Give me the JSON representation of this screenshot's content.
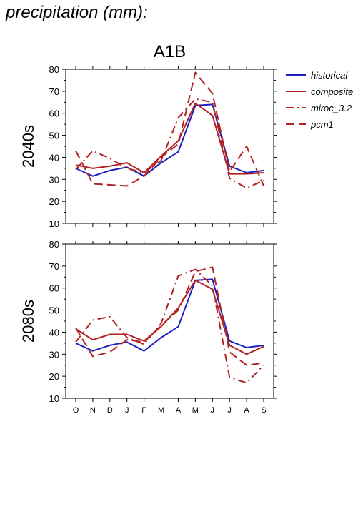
{
  "page_title": "precipitation (mm):",
  "chart_data": [
    {
      "type": "line",
      "title": "A1B",
      "ylabel": "2040s",
      "categories": [
        "O",
        "N",
        "D",
        "J",
        "F",
        "M",
        "A",
        "M",
        "J",
        "J",
        "A",
        "S"
      ],
      "ylim": [
        10,
        80
      ],
      "yticks": [
        "10",
        "20",
        "30",
        "40",
        "50",
        "60",
        "70",
        "80"
      ],
      "legend_position": "right",
      "series": [
        {
          "name": "historical",
          "color": "#1f1fbf",
          "dash": "solid",
          "values": [
            35,
            31.5,
            34,
            35.5,
            31.5,
            37.5,
            42.5,
            63.5,
            64,
            36,
            33,
            34
          ]
        },
        {
          "name": "composite",
          "color": "#b22222",
          "dash": "solid",
          "values": [
            36.5,
            35,
            36,
            37.5,
            33,
            40.5,
            47.5,
            64.5,
            59,
            32.5,
            32.5,
            33
          ]
        },
        {
          "name": "miroc_3.2",
          "color": "#b22222",
          "dash": "dashdot",
          "values": [
            34.5,
            43,
            39.5,
            35,
            33,
            38.5,
            58,
            66.5,
            65,
            30.5,
            26,
            29.5
          ]
        },
        {
          "name": "pcm1",
          "color": "#b22222",
          "dash": "longdash",
          "values": [
            43,
            28,
            27.5,
            27,
            31.5,
            40,
            46,
            78.5,
            69,
            33.5,
            45,
            27
          ]
        }
      ]
    },
    {
      "type": "line",
      "title": "",
      "ylabel": "2080s",
      "categories": [
        "O",
        "N",
        "D",
        "J",
        "F",
        "M",
        "A",
        "M",
        "J",
        "J",
        "A",
        "S"
      ],
      "ylim": [
        10,
        80
      ],
      "yticks": [
        "10",
        "20",
        "30",
        "40",
        "50",
        "60",
        "70",
        "80"
      ],
      "series": [
        {
          "name": "historical",
          "color": "#1f1fbf",
          "dash": "solid",
          "values": [
            35,
            31.5,
            34,
            35.5,
            31.5,
            37.5,
            42.5,
            63.5,
            64,
            36,
            33,
            34
          ]
        },
        {
          "name": "composite",
          "color": "#b22222",
          "dash": "solid",
          "values": [
            41.5,
            36.5,
            39,
            39,
            36,
            42.5,
            51,
            63.5,
            59.5,
            34,
            30,
            33.5
          ]
        },
        {
          "name": "miroc_3.2",
          "color": "#b22222",
          "dash": "dashdot",
          "values": [
            35.5,
            45.5,
            47,
            37.5,
            34.5,
            44,
            65.5,
            68.5,
            61,
            19.5,
            17,
            25
          ]
        },
        {
          "name": "pcm1",
          "color": "#b22222",
          "dash": "longdash",
          "values": [
            42,
            29,
            31,
            36.5,
            35.5,
            43,
            50,
            67.5,
            69.5,
            31,
            25,
            26
          ]
        }
      ]
    }
  ]
}
